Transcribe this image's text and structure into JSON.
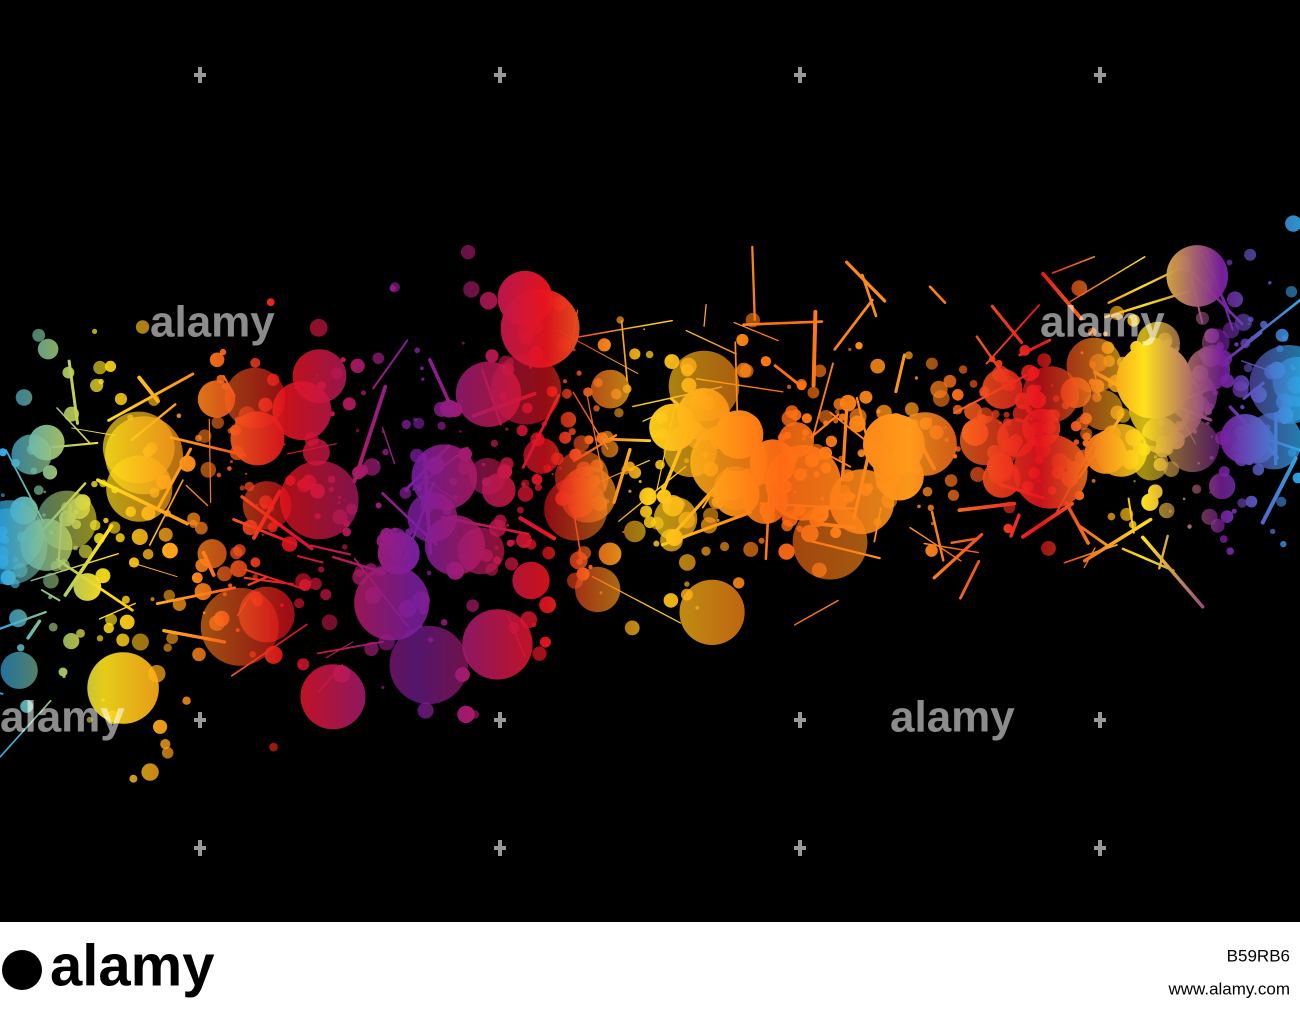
{
  "watermarks": [
    "alamy",
    "alamy",
    "alamy",
    "alamy"
  ],
  "footer": {
    "brand": "alamy",
    "image_id": "B59RB6",
    "url": "www.alamy.com"
  }
}
